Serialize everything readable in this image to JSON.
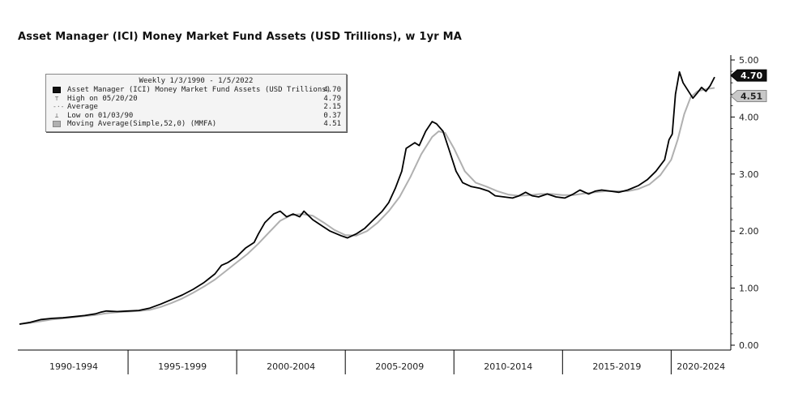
{
  "chart_data": {
    "type": "line",
    "title": "Asset Manager (ICI) Money Market Fund Assets (USD Trillions), w 1yr MA",
    "legend_header": "Weekly 1/3/1990 - 1/5/2022",
    "legend": [
      {
        "label": "Asset Manager (ICI) Money Market Fund Assets (USD Trillions)",
        "value": "4.70",
        "mark": "black"
      },
      {
        "label": "High on 05/20/20",
        "value": "4.79",
        "mark": "high"
      },
      {
        "label": "Average",
        "value": "2.15",
        "mark": "avg"
      },
      {
        "label": "Low on 01/03/90",
        "value": "0.37",
        "mark": "low"
      },
      {
        "label": "Moving Average(Simple,52,0) (MMFA)",
        "value": "4.51",
        "mark": "grey"
      }
    ],
    "legend_placement": "top-left",
    "y_axis": {
      "position": "right",
      "ylim": [
        0,
        5.0
      ],
      "ticks": [
        "0.00",
        "1.00",
        "2.00",
        "3.00",
        "4.00",
        "5.00"
      ]
    },
    "x_axis": {
      "xlim": [
        1990.0,
        2022.0
      ],
      "categories": [
        "1990-1994",
        "1995-1999",
        "2000-2004",
        "2005-2009",
        "2010-2014",
        "2015-2019",
        "2020-2024"
      ]
    },
    "last_value_tags": [
      {
        "label": "4.70",
        "value": 4.7,
        "style": "black"
      },
      {
        "label": "4.51",
        "value": 4.51,
        "style": "grey"
      }
    ],
    "series": [
      {
        "name": "Asset Manager (ICI) Money Market Fund Assets (USD Trillions)",
        "color": "#000000",
        "points": [
          [
            1990.0,
            0.37
          ],
          [
            1990.5,
            0.4
          ],
          [
            1991.0,
            0.45
          ],
          [
            1991.5,
            0.47
          ],
          [
            1992.0,
            0.48
          ],
          [
            1992.5,
            0.5
          ],
          [
            1993.0,
            0.52
          ],
          [
            1993.5,
            0.55
          ],
          [
            1993.75,
            0.58
          ],
          [
            1994.0,
            0.6
          ],
          [
            1994.5,
            0.59
          ],
          [
            1995.0,
            0.6
          ],
          [
            1995.5,
            0.61
          ],
          [
            1996.0,
            0.65
          ],
          [
            1996.5,
            0.72
          ],
          [
            1997.0,
            0.8
          ],
          [
            1997.5,
            0.88
          ],
          [
            1998.0,
            0.98
          ],
          [
            1998.5,
            1.1
          ],
          [
            1999.0,
            1.25
          ],
          [
            1999.3,
            1.4
          ],
          [
            1999.6,
            1.45
          ],
          [
            2000.0,
            1.55
          ],
          [
            2000.4,
            1.7
          ],
          [
            2000.8,
            1.8
          ],
          [
            2001.0,
            1.95
          ],
          [
            2001.3,
            2.15
          ],
          [
            2001.7,
            2.3
          ],
          [
            2002.0,
            2.35
          ],
          [
            2002.3,
            2.25
          ],
          [
            2002.6,
            2.3
          ],
          [
            2002.9,
            2.25
          ],
          [
            2003.1,
            2.35
          ],
          [
            2003.5,
            2.2
          ],
          [
            2003.9,
            2.1
          ],
          [
            2004.3,
            2.0
          ],
          [
            2004.8,
            1.92
          ],
          [
            2005.1,
            1.88
          ],
          [
            2005.5,
            1.95
          ],
          [
            2005.9,
            2.05
          ],
          [
            2006.3,
            2.2
          ],
          [
            2006.7,
            2.35
          ],
          [
            2007.0,
            2.5
          ],
          [
            2007.3,
            2.75
          ],
          [
            2007.6,
            3.05
          ],
          [
            2007.8,
            3.45
          ],
          [
            2008.0,
            3.5
          ],
          [
            2008.2,
            3.55
          ],
          [
            2008.4,
            3.5
          ],
          [
            2008.7,
            3.75
          ],
          [
            2009.0,
            3.92
          ],
          [
            2009.2,
            3.88
          ],
          [
            2009.5,
            3.75
          ],
          [
            2009.8,
            3.4
          ],
          [
            2010.1,
            3.05
          ],
          [
            2010.4,
            2.85
          ],
          [
            2010.8,
            2.78
          ],
          [
            2011.2,
            2.75
          ],
          [
            2011.6,
            2.7
          ],
          [
            2011.9,
            2.62
          ],
          [
            2012.3,
            2.6
          ],
          [
            2012.7,
            2.58
          ],
          [
            2013.0,
            2.62
          ],
          [
            2013.3,
            2.68
          ],
          [
            2013.6,
            2.62
          ],
          [
            2013.9,
            2.6
          ],
          [
            2014.3,
            2.65
          ],
          [
            2014.7,
            2.6
          ],
          [
            2015.1,
            2.58
          ],
          [
            2015.5,
            2.65
          ],
          [
            2015.8,
            2.72
          ],
          [
            2016.2,
            2.65
          ],
          [
            2016.5,
            2.7
          ],
          [
            2016.8,
            2.72
          ],
          [
            2017.2,
            2.7
          ],
          [
            2017.6,
            2.68
          ],
          [
            2018.0,
            2.72
          ],
          [
            2018.5,
            2.8
          ],
          [
            2018.9,
            2.9
          ],
          [
            2019.3,
            3.05
          ],
          [
            2019.7,
            3.25
          ],
          [
            2019.9,
            3.6
          ],
          [
            2020.05,
            3.7
          ],
          [
            2020.2,
            4.4
          ],
          [
            2020.38,
            4.79
          ],
          [
            2020.55,
            4.6
          ],
          [
            2020.8,
            4.45
          ],
          [
            2021.0,
            4.33
          ],
          [
            2021.2,
            4.42
          ],
          [
            2021.4,
            4.52
          ],
          [
            2021.6,
            4.45
          ],
          [
            2021.8,
            4.55
          ],
          [
            2022.0,
            4.7
          ]
        ]
      },
      {
        "name": "Moving Average(Simple,52,0) (MMFA)",
        "color": "#b0b0b0",
        "points": [
          [
            1990.0,
            0.37
          ],
          [
            1990.5,
            0.39
          ],
          [
            1991.0,
            0.42
          ],
          [
            1991.5,
            0.45
          ],
          [
            1992.0,
            0.47
          ],
          [
            1992.5,
            0.49
          ],
          [
            1993.0,
            0.51
          ],
          [
            1993.5,
            0.53
          ],
          [
            1994.0,
            0.56
          ],
          [
            1994.5,
            0.58
          ],
          [
            1995.0,
            0.59
          ],
          [
            1995.5,
            0.6
          ],
          [
            1996.0,
            0.62
          ],
          [
            1996.5,
            0.67
          ],
          [
            1997.0,
            0.74
          ],
          [
            1997.5,
            0.82
          ],
          [
            1998.0,
            0.92
          ],
          [
            1998.5,
            1.03
          ],
          [
            1999.0,
            1.15
          ],
          [
            1999.5,
            1.3
          ],
          [
            2000.0,
            1.45
          ],
          [
            2000.5,
            1.6
          ],
          [
            2001.0,
            1.78
          ],
          [
            2001.5,
            1.98
          ],
          [
            2002.0,
            2.18
          ],
          [
            2002.5,
            2.28
          ],
          [
            2003.0,
            2.3
          ],
          [
            2003.5,
            2.27
          ],
          [
            2004.0,
            2.15
          ],
          [
            2004.5,
            2.02
          ],
          [
            2005.0,
            1.93
          ],
          [
            2005.5,
            1.92
          ],
          [
            2006.0,
            2.0
          ],
          [
            2006.5,
            2.15
          ],
          [
            2007.0,
            2.35
          ],
          [
            2007.5,
            2.6
          ],
          [
            2008.0,
            2.95
          ],
          [
            2008.5,
            3.35
          ],
          [
            2009.0,
            3.65
          ],
          [
            2009.3,
            3.75
          ],
          [
            2009.6,
            3.72
          ],
          [
            2010.0,
            3.45
          ],
          [
            2010.5,
            3.05
          ],
          [
            2011.0,
            2.85
          ],
          [
            2011.5,
            2.78
          ],
          [
            2012.0,
            2.7
          ],
          [
            2012.5,
            2.64
          ],
          [
            2013.0,
            2.62
          ],
          [
            2013.5,
            2.63
          ],
          [
            2014.0,
            2.65
          ],
          [
            2014.5,
            2.65
          ],
          [
            2015.0,
            2.63
          ],
          [
            2015.5,
            2.63
          ],
          [
            2016.0,
            2.66
          ],
          [
            2016.5,
            2.68
          ],
          [
            2017.0,
            2.7
          ],
          [
            2017.5,
            2.7
          ],
          [
            2018.0,
            2.7
          ],
          [
            2018.5,
            2.74
          ],
          [
            2019.0,
            2.82
          ],
          [
            2019.5,
            2.98
          ],
          [
            2020.0,
            3.25
          ],
          [
            2020.3,
            3.6
          ],
          [
            2020.6,
            4.05
          ],
          [
            2020.9,
            4.35
          ],
          [
            2021.2,
            4.45
          ],
          [
            2021.5,
            4.48
          ],
          [
            2021.8,
            4.5
          ],
          [
            2022.0,
            4.51
          ]
        ]
      }
    ]
  }
}
